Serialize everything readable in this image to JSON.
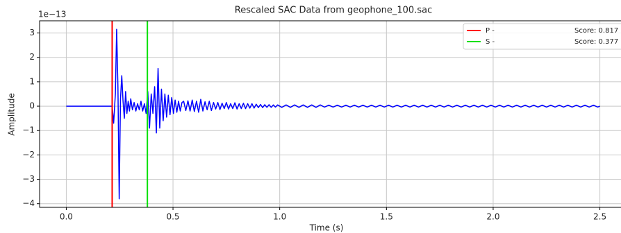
{
  "chart_data": {
    "type": "line",
    "title": "Rescaled SAC Data from geophone_100.sac",
    "xlabel": "Time (s)",
    "ylabel": "Amplitude",
    "y_offset_label": "1e−13",
    "xlim": [
      -0.125,
      2.625
    ],
    "ylim": [
      -4.15,
      3.5
    ],
    "xticks": [
      {
        "value": 0,
        "label": "0.0"
      },
      0.5,
      {
        "value": 1,
        "label": "1.0"
      },
      1.5,
      {
        "value": 2,
        "label": "2.0"
      },
      2.5
    ],
    "yticks": [
      {
        "value": -4,
        "label": "−4"
      },
      {
        "value": -3,
        "label": "−3"
      },
      {
        "value": -2,
        "label": "−2"
      },
      {
        "value": -1,
        "label": "−1"
      },
      0,
      1,
      2,
      3
    ],
    "grid": true,
    "legend": "upper right",
    "x": [
      0,
      0.215,
      0.222,
      0.23,
      0.236,
      0.242,
      0.248,
      0.254,
      0.26,
      0.266,
      0.272,
      0.278,
      0.284,
      0.29,
      0.296,
      0.302,
      0.31,
      0.318,
      0.326,
      0.334,
      0.342,
      0.35,
      0.358,
      0.366,
      0.374,
      0.382,
      0.39,
      0.398,
      0.406,
      0.414,
      0.422,
      0.43,
      0.438,
      0.446,
      0.454,
      0.462,
      0.47,
      0.478,
      0.486,
      0.494,
      0.502,
      0.51,
      0.518,
      0.526,
      0.534,
      0.542,
      0.55,
      0.56,
      0.57,
      0.58,
      0.59,
      0.6,
      0.61,
      0.62,
      0.63,
      0.64,
      0.65,
      0.66,
      0.67,
      0.68,
      0.69,
      0.7,
      0.71,
      0.72,
      0.73,
      0.74,
      0.75,
      0.76,
      0.77,
      0.78,
      0.79,
      0.8,
      0.81,
      0.82,
      0.83,
      0.84,
      0.85,
      0.86,
      0.87,
      0.88,
      0.89,
      0.9,
      0.91,
      0.92,
      0.93,
      0.94,
      0.95,
      0.96,
      0.97,
      0.98,
      0.99,
      1.01,
      1.03,
      1.05,
      1.07,
      1.09,
      1.11,
      1.13,
      1.15,
      1.17,
      1.19,
      1.21,
      1.23,
      1.25,
      1.27,
      1.29,
      1.31,
      1.33,
      1.35,
      1.37,
      1.39,
      1.41,
      1.43,
      1.45,
      1.47,
      1.49,
      1.51,
      1.53,
      1.55,
      1.57,
      1.59,
      1.61,
      1.63,
      1.65,
      1.67,
      1.69,
      1.71,
      1.73,
      1.75,
      1.77,
      1.79,
      1.81,
      1.83,
      1.85,
      1.87,
      1.89,
      1.91,
      1.93,
      1.95,
      1.97,
      1.99,
      2.01,
      2.03,
      2.05,
      2.07,
      2.09,
      2.11,
      2.13,
      2.15,
      2.17,
      2.19,
      2.21,
      2.23,
      2.25,
      2.27,
      2.29,
      2.31,
      2.33,
      2.35,
      2.37,
      2.39,
      2.41,
      2.43,
      2.45,
      2.47,
      2.49,
      2.5
    ],
    "series": [
      {
        "color": "#0000ff",
        "values": [
          0,
          0,
          -0.7,
          0.5,
          3.15,
          0.8,
          -3.8,
          0.3,
          1.25,
          0.2,
          -0.5,
          0.6,
          -0.3,
          0.2,
          -0.2,
          0.3,
          -0.15,
          0.15,
          -0.2,
          0.1,
          -0.15,
          0.2,
          -0.2,
          0.1,
          -0.3,
          0.6,
          -0.9,
          0.5,
          -0.3,
          0.8,
          -1.1,
          1.55,
          -0.9,
          0.7,
          -0.6,
          0.5,
          -0.45,
          0.45,
          -0.35,
          0.35,
          -0.3,
          0.25,
          -0.25,
          0.2,
          -0.2,
          0.15,
          0.2,
          -0.18,
          0.22,
          -0.2,
          0.25,
          -0.22,
          0.2,
          -0.25,
          0.28,
          -0.2,
          0.18,
          -0.15,
          0.2,
          -0.18,
          0.15,
          -0.12,
          0.15,
          -0.14,
          0.12,
          -0.1,
          0.15,
          -0.12,
          0.1,
          -0.1,
          0.14,
          -0.12,
          0.1,
          -0.1,
          0.12,
          -0.1,
          0.1,
          -0.08,
          0.1,
          -0.08,
          0.08,
          -0.06,
          0.07,
          -0.06,
          0.06,
          -0.05,
          0.06,
          -0.05,
          0.05,
          -0.04,
          0.05,
          -0.05,
          0.05,
          -0.05,
          0.05,
          -0.05,
          0.05,
          -0.05,
          0.05,
          -0.05,
          0.05,
          -0.04,
          0.04,
          -0.04,
          0.04,
          -0.04,
          0.04,
          -0.04,
          0.04,
          -0.04,
          0.04,
          -0.04,
          0.04,
          -0.04,
          0.04,
          -0.04,
          0.04,
          -0.04,
          0.04,
          -0.04,
          0.04,
          -0.04,
          0.04,
          -0.04,
          0.04,
          -0.04,
          0.04,
          -0.04,
          0.04,
          -0.04,
          0.04,
          -0.04,
          0.04,
          -0.04,
          0.04,
          -0.04,
          0.04,
          -0.04,
          0.04,
          -0.04,
          0.04,
          -0.04,
          0.04,
          -0.04,
          0.04,
          -0.04,
          0.04,
          -0.04,
          0.04,
          -0.04,
          0.04,
          -0.04,
          0.04,
          -0.04,
          0.04,
          -0.04,
          0.04,
          -0.04,
          0.04,
          -0.04,
          0.04,
          -0.04,
          0.04,
          -0.04,
          0.04,
          -0.04,
          0
        ]
      }
    ],
    "markers": [
      {
        "name": "P -",
        "score_label": "Score: 0.817",
        "x": 0.215,
        "color": "#ff0000"
      },
      {
        "name": "S -",
        "score_label": "Score: 0.377",
        "x": 0.38,
        "color": "#00e000"
      }
    ]
  }
}
